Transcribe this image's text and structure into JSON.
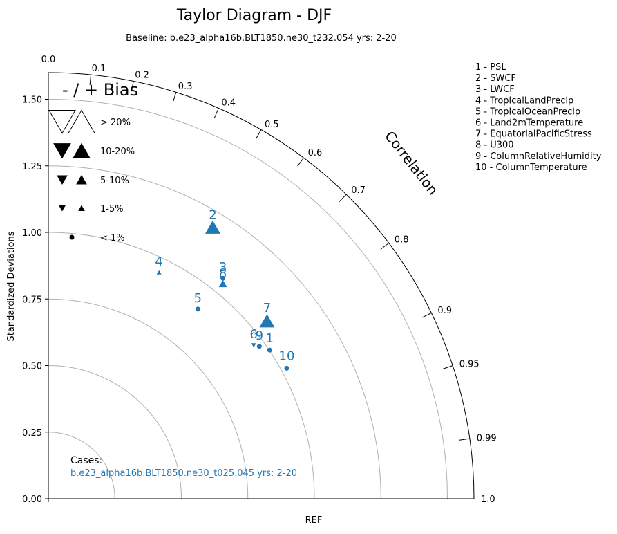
{
  "chart_data": {
    "type": "scatter",
    "subtype": "taylor-diagram",
    "title": "Taylor Diagram - DJF",
    "subtitle": "Baseline: b.e23_alpha16b.BLT1850.ne30_t232.054  yrs: 2-20",
    "ylabel": "Standardized Deviations",
    "xlabel": "REF",
    "correlation_label": "Correlation",
    "std_range": [
      0,
      1.6
    ],
    "std_ticks": [
      "0.00",
      "0.25",
      "0.50",
      "0.75",
      "1.00",
      "1.25",
      "1.50"
    ],
    "std_rings": [
      0.25,
      0.5,
      0.75,
      1.0,
      1.25,
      1.5
    ],
    "corr_ticks": [
      {
        "value": 0.0,
        "label": "0.0"
      },
      {
        "value": 0.1,
        "label": "0.1"
      },
      {
        "value": 0.2,
        "label": "0.2"
      },
      {
        "value": 0.3,
        "label": "0.3"
      },
      {
        "value": 0.4,
        "label": "0.4"
      },
      {
        "value": 0.5,
        "label": "0.5"
      },
      {
        "value": 0.6,
        "label": "0.6"
      },
      {
        "value": 0.7,
        "label": "0.7"
      },
      {
        "value": 0.8,
        "label": "0.8"
      },
      {
        "value": 0.9,
        "label": "0.9"
      },
      {
        "value": 0.95,
        "label": "0.95"
      },
      {
        "value": 0.99,
        "label": "0.99"
      },
      {
        "value": 1.0,
        "label": "1.0"
      }
    ],
    "variables": [
      "1 - PSL",
      "2 - SWCF",
      "3 - LWCF",
      "4 - TropicalLandPrecip",
      "5 - TropicalOceanPrecip",
      "6 - Land2mTemperature",
      "7 - EquatorialPacificStress",
      "8 - U300",
      "9 - ColumnRelativeHumidity",
      "10 - ColumnTemperature"
    ],
    "bias_legend": {
      "title": "- / + Bias",
      "entries": [
        {
          "label": "> 20%",
          "style": "open"
        },
        {
          "label": "10-20%",
          "style": "filled"
        },
        {
          "label": "5-10%",
          "style": "filled"
        },
        {
          "label": "1-5%",
          "style": "filled"
        },
        {
          "label": "< 1%",
          "style": "dot"
        }
      ]
    },
    "series": [
      {
        "name": "b.e23_alpha16b.BLT1850.ne30_t025.045  yrs: 2-20",
        "color": "#1f77b4",
        "points": [
          {
            "id": "1",
            "x": 0.832,
            "y": 0.558,
            "bias": "< 1%"
          },
          {
            "id": "2",
            "x": 0.618,
            "y": 1.02,
            "bias": "10-20%",
            "sign": "+"
          },
          {
            "id": "3",
            "x": 0.656,
            "y": 0.828,
            "bias": "< 1%"
          },
          {
            "id": "4",
            "x": 0.416,
            "y": 0.85,
            "bias": "1-5%",
            "sign": "+"
          },
          {
            "id": "5",
            "x": 0.562,
            "y": 0.712,
            "bias": "< 1%"
          },
          {
            "id": "6",
            "x": 0.772,
            "y": 0.576,
            "bias": "1-5%",
            "sign": "-"
          },
          {
            "id": "7",
            "x": 0.822,
            "y": 0.668,
            "bias": "10-20%",
            "sign": "+"
          },
          {
            "id": "8",
            "x": 0.656,
            "y": 0.808,
            "bias": "5-10%",
            "sign": "+"
          },
          {
            "id": "9",
            "x": 0.793,
            "y": 0.572,
            "bias": "< 1%"
          },
          {
            "id": "10",
            "x": 0.896,
            "y": 0.49,
            "bias": "< 1%"
          }
        ]
      }
    ],
    "cases_label": "Cases:",
    "colors": {
      "series": "#1f77b4",
      "grid": "#b0b0b0",
      "axis": "#000000"
    }
  }
}
